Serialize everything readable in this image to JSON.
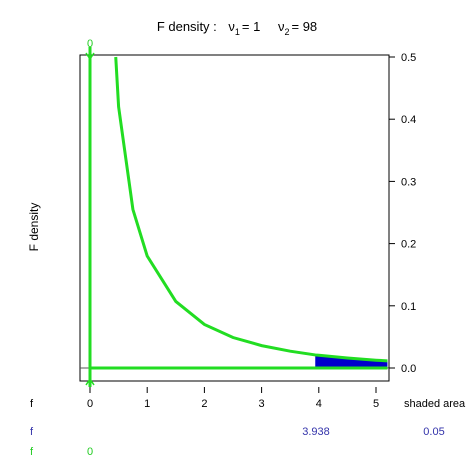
{
  "chart_data": {
    "type": "line",
    "title": {
      "prefix": "F density :",
      "nu1_symbol": "ν",
      "nu1_sub": "1",
      "nu1_eq": "= 1",
      "nu2_symbol": "ν",
      "nu2_sub": "2",
      "nu2_eq": "= 98",
      "df1": 1,
      "df2": 98
    },
    "ylabel": "F density",
    "xlabel": "",
    "xlim": [
      0,
      5.2
    ],
    "ylim": [
      -0.02,
      0.51
    ],
    "x_ticks": [
      0,
      1,
      2,
      3,
      4,
      5
    ],
    "x_tick_labels": [
      "0",
      "1",
      "2",
      "3",
      "4",
      "5"
    ],
    "y_ticks": [
      0.0,
      0.1,
      0.2,
      0.3,
      0.4,
      0.5
    ],
    "y_tick_labels": [
      "0.0",
      "0.1",
      "0.2",
      "0.3",
      "0.4",
      "0.5"
    ],
    "y_axis_side": "right",
    "curve_points": [
      {
        "x": 0.45,
        "y": 0.5
      },
      {
        "x": 0.5,
        "y": 0.42
      },
      {
        "x": 0.75,
        "y": 0.255
      },
      {
        "x": 1.0,
        "y": 0.18
      },
      {
        "x": 1.5,
        "y": 0.107
      },
      {
        "x": 2.0,
        "y": 0.07
      },
      {
        "x": 2.5,
        "y": 0.049
      },
      {
        "x": 3.0,
        "y": 0.036
      },
      {
        "x": 3.5,
        "y": 0.027
      },
      {
        "x": 3.938,
        "y": 0.021
      },
      {
        "x": 4.0,
        "y": 0.0205
      },
      {
        "x": 4.5,
        "y": 0.016
      },
      {
        "x": 5.0,
        "y": 0.0125
      },
      {
        "x": 5.2,
        "y": 0.0115
      }
    ],
    "critical_value": 3.938,
    "shaded_area": 0.05,
    "grid": false,
    "colors": {
      "curve": "#22dd22",
      "shade": "#0000cc",
      "value_text": "#3333aa",
      "zero_text": "#22cc22",
      "axis": "#000000"
    },
    "top_marker_label": "0",
    "table": {
      "row1": {
        "label": "f",
        "header": "shaded area"
      },
      "row2": {
        "label": "f",
        "value": "3.938",
        "area": "0.05"
      },
      "row3": {
        "label": "f",
        "value": "0"
      }
    }
  }
}
